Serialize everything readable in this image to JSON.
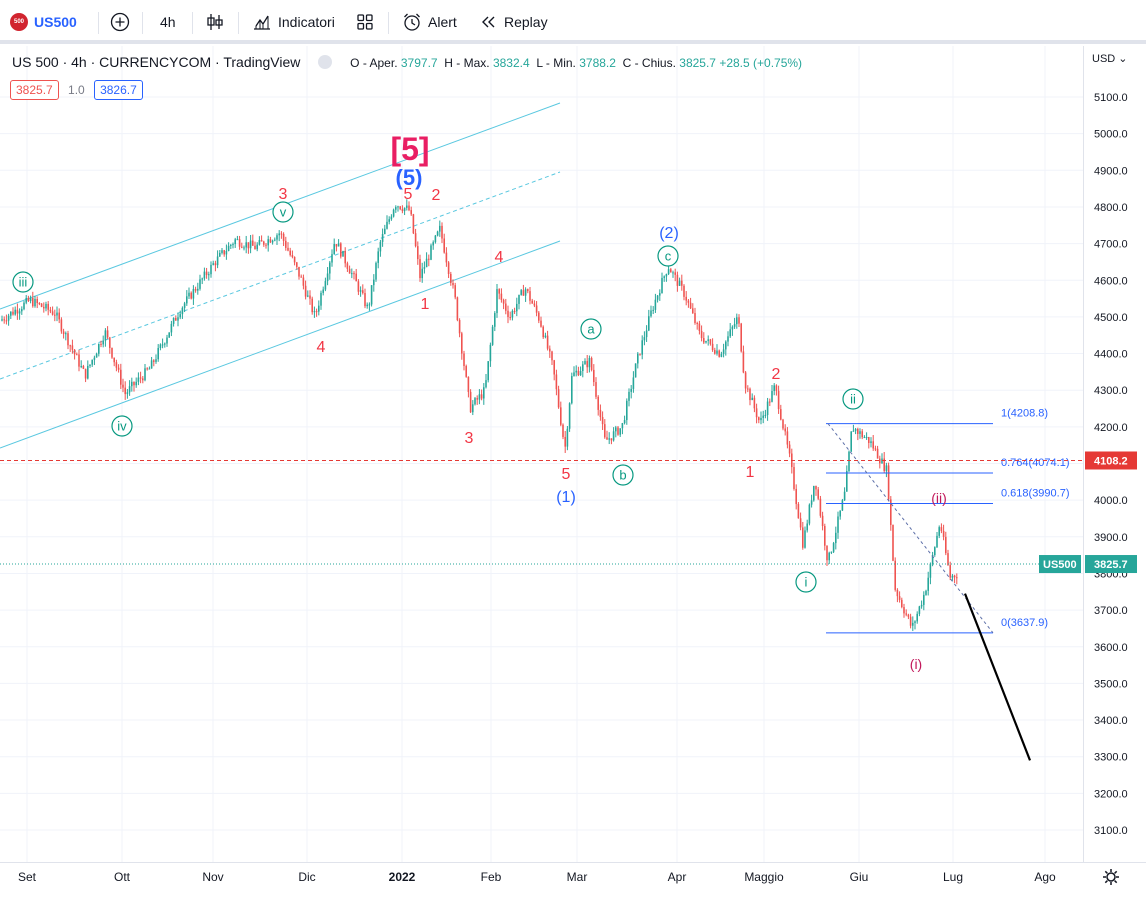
{
  "toolbar": {
    "symbol": "US500",
    "interval": "4h",
    "indicators_label": "Indicatori",
    "alert_label": "Alert",
    "replay_label": "Replay"
  },
  "legend": {
    "title": "US 500 · 4h · CURRENCYCOM · TradingView",
    "open_label": "O - Aper.",
    "open": "3797.7",
    "high_label": "H - Max.",
    "high": "3832.4",
    "low_label": "L - Min.",
    "low": "3788.2",
    "close_label": "C - Chius.",
    "close": "3825.7",
    "change": "+28.5 (+0.75%)",
    "bid": "3825.7",
    "spread": "1.0",
    "ask": "3826.7"
  },
  "price_axis": {
    "currency": "USD",
    "ticks": [
      "5100.0",
      "5000.0",
      "4900.0",
      "4800.0",
      "4700.0",
      "4600.0",
      "4500.0",
      "4400.0",
      "4300.0",
      "4200.0",
      "4100.0",
      "4000.0",
      "3900.0",
      "3800.0",
      "3700.0",
      "3600.0",
      "3500.0",
      "3400.0",
      "3300.0",
      "3200.0",
      "3100.0"
    ],
    "alert_price": "4108.2",
    "current_label": "US500",
    "current_price": "3825.7"
  },
  "time_axis": {
    "ticks": [
      "Set",
      "Ott",
      "Nov",
      "Dic",
      "2022",
      "Feb",
      "Mar",
      "Apr",
      "Maggio",
      "Giu",
      "Lug",
      "Ago"
    ]
  },
  "fib_levels": [
    {
      "label": "1(4208.8)",
      "value": 4208.8
    },
    {
      "label": "0.764(4074.1)",
      "value": 4074.1
    },
    {
      "label": "0.618(3990.7)",
      "value": 3990.7
    },
    {
      "label": "0(3637.9)",
      "value": 3637.9
    }
  ],
  "wave_labels": {
    "big5": "[5]",
    "w5": "(5)",
    "w1": "(1)",
    "w2": "(2)",
    "iii": "iii",
    "iv": "iv",
    "v": "v",
    "a": "a",
    "b": "b",
    "c": "c",
    "i": "i",
    "ii": "ii",
    "paren_i": "(i)",
    "paren_ii": "(ii)",
    "red3_top": "3",
    "red4_left": "4",
    "red5_top": "5",
    "red2_top": "2",
    "red1_mid": "1",
    "red4_mid": "4",
    "red3_low": "3",
    "red5_low": "5",
    "red2_may": "2",
    "red1_may": "1"
  },
  "colors": {
    "bull": "#26a69a",
    "bear": "#ef5350",
    "channel": "#5ac8e0",
    "fib": "#2962ff",
    "wave_red": "#f23645",
    "wave_teal": "#089981",
    "wave_blue": "#2962ff",
    "wave_pink": "#e91e63",
    "wave_magenta": "#c2185b"
  }
}
